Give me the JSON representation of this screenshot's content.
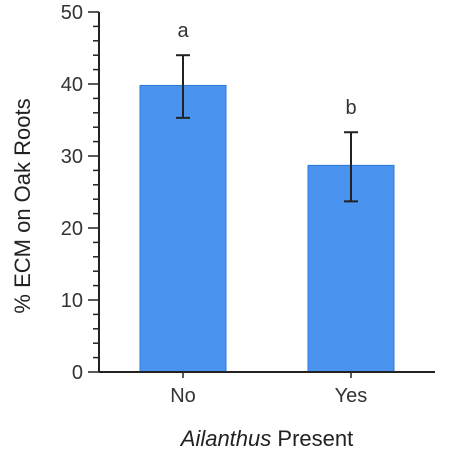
{
  "chart_data": {
    "type": "bar",
    "categories": [
      "No",
      "Yes"
    ],
    "values": [
      39.8,
      28.7
    ],
    "error_upper": [
      44.0,
      33.3
    ],
    "error_lower": [
      35.3,
      23.7
    ],
    "significance_labels": [
      "a",
      "b"
    ],
    "xlabel_italic": "Ailanthus",
    "xlabel_rest": " Present",
    "ylabel": "% ECM on Oak Roots",
    "ylim": [
      0,
      50
    ],
    "yticks": [
      "0",
      "10",
      "20",
      "30",
      "40",
      "50"
    ],
    "ytick_values": [
      0,
      10,
      20,
      30,
      40,
      50
    ],
    "minor_tick_step": 2,
    "grid": false,
    "bar_color": "#4a94f0",
    "bar_edge_color": "#2f78d8"
  }
}
